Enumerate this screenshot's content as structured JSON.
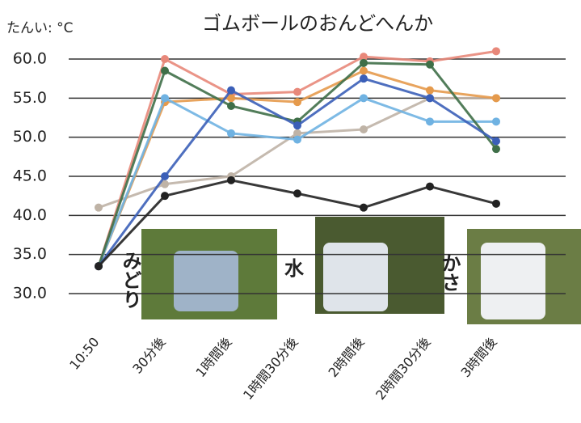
{
  "chart_data": {
    "type": "line",
    "title": "ゴムボールのおんどへんか",
    "unit_label": "たんい: °C",
    "categories": [
      "10:50",
      "30分後",
      "1時間後",
      "1時間30分後",
      "2時間後",
      "2時間30分後",
      "3時間後"
    ],
    "ylim": [
      30,
      60
    ],
    "yticks": [
      {
        "value": 30,
        "label": "30.0"
      },
      {
        "value": 35,
        "label": "35.0"
      },
      {
        "value": 40,
        "label": "40.0"
      },
      {
        "value": 45,
        "label": "45.0"
      },
      {
        "value": 50,
        "label": "50.0"
      },
      {
        "value": 55,
        "label": "55.0"
      },
      {
        "value": 60,
        "label": "60.0"
      }
    ],
    "grid": true,
    "series": [
      {
        "color": "#bfb3a6",
        "values": [
          41,
          44,
          45,
          50.5,
          51,
          55,
          55
        ]
      },
      {
        "color": "#e8887a",
        "values": [
          33.5,
          60,
          55.5,
          55.8,
          60.3,
          59.7,
          61
        ]
      },
      {
        "color": "#e59a4c",
        "values": [
          33.5,
          54.5,
          55,
          54.5,
          58.5,
          56,
          55
        ]
      },
      {
        "color": "#6fb2e2",
        "values": [
          33.5,
          55,
          50.5,
          49.7,
          55,
          52,
          52
        ]
      },
      {
        "color": "#3f6f48",
        "values": [
          33.5,
          58.5,
          54,
          52,
          59.5,
          59.3,
          48.5
        ]
      },
      {
        "color": "#3b5fb8",
        "values": [
          33.5,
          45,
          56,
          51.5,
          57.5,
          55,
          49.5
        ]
      },
      {
        "color": "#222222",
        "values": [
          33.5,
          42.5,
          44.5,
          42.8,
          41,
          43.7,
          41.5
        ]
      }
    ],
    "annotations": [
      {
        "text": "みどり",
        "color": "#3d8a3d"
      },
      {
        "text": "水",
        "color": "#2b4fa8"
      },
      {
        "text": "かさ",
        "color": "#111"
      }
    ]
  }
}
